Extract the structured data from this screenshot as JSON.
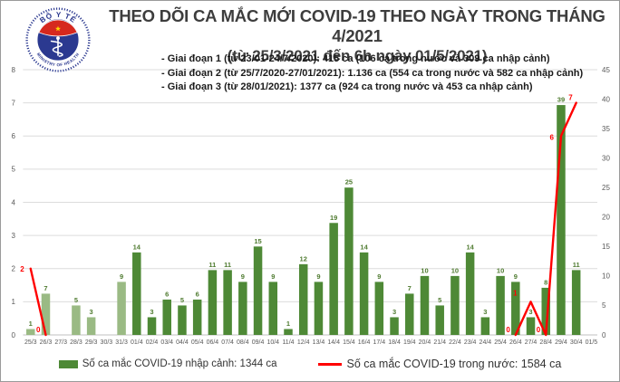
{
  "header": {
    "title": "THEO DÕI CA MẮC MỚI COVID-19 THEO NGÀY TRONG THÁNG 4/2021",
    "subtitle": "(từ 25/3/2021 đến 6h ngày 01/5/2021)",
    "logo": {
      "top_text": "BỘ Y TẾ",
      "bottom_text": "MINISTRY OF HEALTH"
    }
  },
  "notes": [
    "- Giai đoạn 1 (từ 23/01-24/7/2020): 415 ca (106 ca trong nước và 309 ca nhập cảnh)",
    "- Giai đoạn 2 (từ 25/7/2020-27/01/2021): 1.136 ca (554 ca trong nước và 582 ca nhập cảnh)",
    "- Giai đoạn 3 (từ 28/01/2021): 1377 ca (924 ca trong nước và 453 ca nhập cảnh)"
  ],
  "chart_data": {
    "type": "bar+line",
    "title": "THEO DÕI CA MẮC MỚI COVID-19 THEO NGÀY TRONG THÁNG 4/2021",
    "categories": [
      "25/3",
      "26/3",
      "27/3",
      "28/3",
      "29/3",
      "30/3",
      "31/3",
      "01/4",
      "02/4",
      "03/4",
      "04/4",
      "05/4",
      "06/4",
      "07/4",
      "08/4",
      "09/4",
      "10/4",
      "11/4",
      "12/4",
      "13/4",
      "14/4",
      "15/4",
      "16/4",
      "17/4",
      "18/4",
      "19/4",
      "20/4",
      "21/4",
      "22/4",
      "23/4",
      "24/4",
      "25/4",
      "26/4",
      "27/4",
      "28/4",
      "29/4",
      "30/4",
      "01/5"
    ],
    "series": [
      {
        "name": "Số ca mắc COVID-19 nhập cảnh",
        "type": "bar",
        "axis": "right",
        "values": [
          1,
          7,
          null,
          5,
          3,
          null,
          9,
          14,
          3,
          6,
          5,
          6,
          11,
          11,
          9,
          15,
          9,
          1,
          12,
          9,
          19,
          25,
          14,
          9,
          3,
          7,
          10,
          5,
          10,
          14,
          3,
          10,
          9,
          3,
          8,
          39,
          11,
          null
        ]
      },
      {
        "name": "Số ca mắc COVID-19 trong nước",
        "type": "line",
        "axis": "left",
        "segments": [
          [
            [
              "25/3",
              2
            ],
            [
              "26/3",
              0
            ]
          ],
          [
            [
              "26/4",
              0
            ],
            [
              "27/4",
              1
            ],
            [
              "28/4",
              0
            ],
            [
              "29/4",
              6
            ],
            [
              "30/4",
              7
            ]
          ]
        ]
      }
    ],
    "left_axis": {
      "min": 0,
      "max": 8,
      "step": 1
    },
    "right_axis": {
      "min": 0,
      "max": 45,
      "step": 5
    },
    "grid": true,
    "legend_position": "bottom",
    "colors": {
      "bar_march": "#9aba84",
      "bar_april": "#4e8936",
      "bar_label": "#4f7b30",
      "line": "#ff0000",
      "line_label": "#ff0000",
      "axis_text": "#595959",
      "gridline": "#dcdcdc",
      "baseline": "#c0c0c0"
    }
  },
  "legend": {
    "items": [
      {
        "swatch": "bar",
        "color": "#4e8936",
        "label": "Số ca mắc COVID-19 nhập cảnh: 1344 ca"
      },
      {
        "swatch": "line",
        "color": "#ff0000",
        "label": "Số ca mắc COVID-19 trong nước: 1584 ca"
      }
    ]
  }
}
